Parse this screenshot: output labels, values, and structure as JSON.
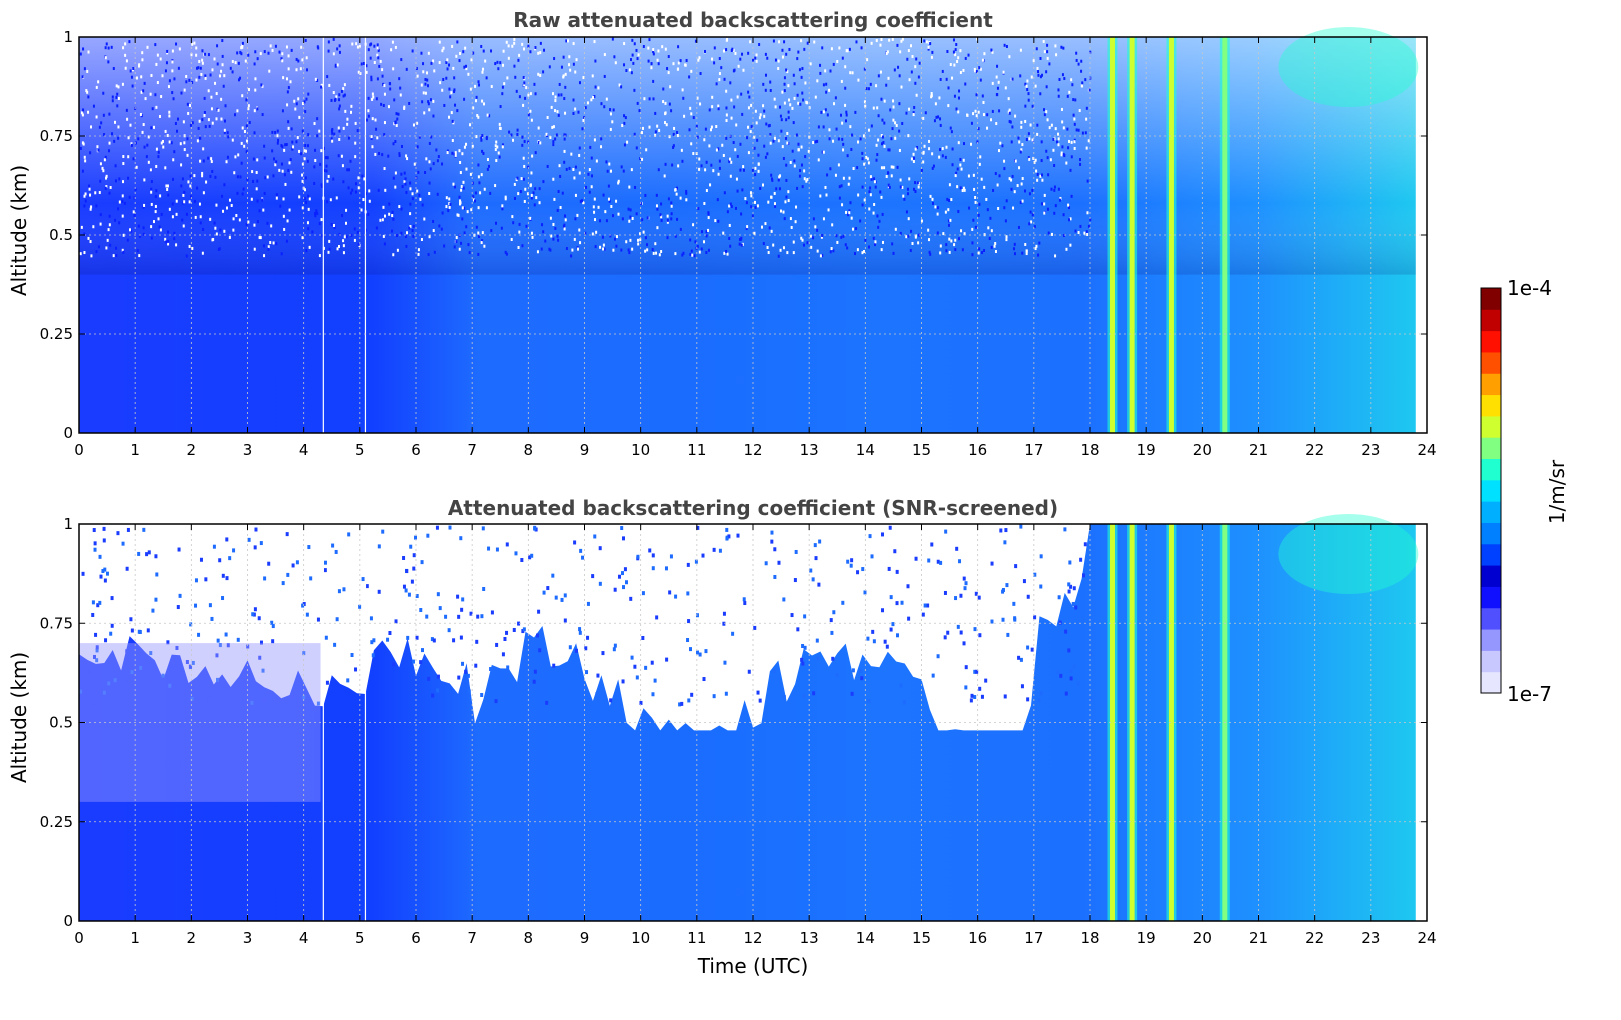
{
  "chart_data": [
    {
      "type": "heatmap",
      "title": "Raw attenuated backscattering coefficient",
      "xlabel": "",
      "ylabel": "Altitude (km)",
      "xlim": [
        0,
        24
      ],
      "ylim": [
        0,
        1
      ],
      "xticks": [
        "0",
        "1",
        "2",
        "3",
        "4",
        "5",
        "6",
        "7",
        "8",
        "9",
        "10",
        "11",
        "12",
        "13",
        "14",
        "15",
        "16",
        "17",
        "18",
        "19",
        "20",
        "21",
        "22",
        "23",
        "24"
      ],
      "yticks": [
        "0",
        "0.25",
        "0.5",
        "0.75",
        "1"
      ],
      "grid": true,
      "data_end_time": 23.8,
      "bright_bands_utc": [
        18.4,
        18.75,
        19.45,
        20.4
      ],
      "colorscale": "jet"
    },
    {
      "type": "heatmap",
      "title": "Attenuated backscattering coefficient (SNR-screened)",
      "xlabel": "Time (UTC)",
      "ylabel": "Altitude (km)",
      "xlim": [
        0,
        24
      ],
      "ylim": [
        0,
        1
      ],
      "xticks": [
        "0",
        "1",
        "2",
        "3",
        "4",
        "5",
        "6",
        "7",
        "8",
        "9",
        "10",
        "11",
        "12",
        "13",
        "14",
        "15",
        "16",
        "17",
        "18",
        "19",
        "20",
        "21",
        "22",
        "23",
        "24"
      ],
      "yticks": [
        "0",
        "0.25",
        "0.5",
        "0.75",
        "1"
      ],
      "grid": true,
      "data_end_time": 23.8,
      "bright_bands_utc": [
        18.4,
        18.75,
        19.45,
        20.4
      ],
      "colorscale": "jet"
    }
  ],
  "colorbar": {
    "label": "1/m/sr",
    "max_label": "1e-4",
    "min_label": "1e-7",
    "colors": [
      "#e6e6ff",
      "#c8c8ff",
      "#9696ff",
      "#5050ff",
      "#1010ff",
      "#0000d0",
      "#0040ff",
      "#0080ff",
      "#00b0ff",
      "#00e0ff",
      "#20ffd0",
      "#80ff80",
      "#d0ff30",
      "#ffe000",
      "#ffa000",
      "#ff5000",
      "#ff1000",
      "#c00000",
      "#800000"
    ]
  }
}
